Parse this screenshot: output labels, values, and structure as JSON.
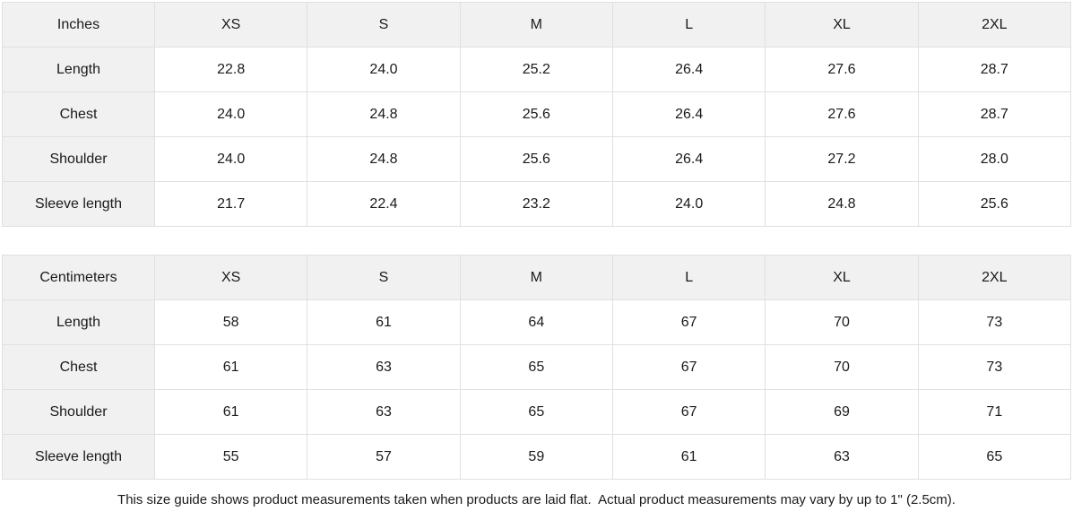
{
  "chart_data": [
    {
      "type": "table",
      "unit_label": "Inches",
      "size_headers": [
        "XS",
        "S",
        "M",
        "L",
        "XL",
        "2XL"
      ],
      "rows": [
        {
          "label": "Length",
          "values": [
            "22.8",
            "24.0",
            "25.2",
            "26.4",
            "27.6",
            "28.7"
          ]
        },
        {
          "label": "Chest",
          "values": [
            "24.0",
            "24.8",
            "25.6",
            "26.4",
            "27.6",
            "28.7"
          ]
        },
        {
          "label": "Shoulder",
          "values": [
            "24.0",
            "24.8",
            "25.6",
            "26.4",
            "27.2",
            "28.0"
          ]
        },
        {
          "label": "Sleeve length",
          "values": [
            "21.7",
            "22.4",
            "23.2",
            "24.0",
            "24.8",
            "25.6"
          ]
        }
      ]
    },
    {
      "type": "table",
      "unit_label": "Centimeters",
      "size_headers": [
        "XS",
        "S",
        "M",
        "L",
        "XL",
        "2XL"
      ],
      "rows": [
        {
          "label": "Length",
          "values": [
            "58",
            "61",
            "64",
            "67",
            "70",
            "73"
          ]
        },
        {
          "label": "Chest",
          "values": [
            "61",
            "63",
            "65",
            "67",
            "70",
            "73"
          ]
        },
        {
          "label": "Shoulder",
          "values": [
            "61",
            "63",
            "65",
            "67",
            "69",
            "71"
          ]
        },
        {
          "label": "Sleeve length",
          "values": [
            "55",
            "57",
            "59",
            "61",
            "63",
            "65"
          ]
        }
      ]
    }
  ],
  "footer": {
    "note": "This size guide shows product measurements taken when products are laid flat.  Actual product measurements may vary by up to 1\" (2.5cm)."
  },
  "colors": {
    "header_bg": "#f1f1f1",
    "border": "#e0e0e0",
    "text": "#1a1a1a",
    "background": "#ffffff"
  }
}
